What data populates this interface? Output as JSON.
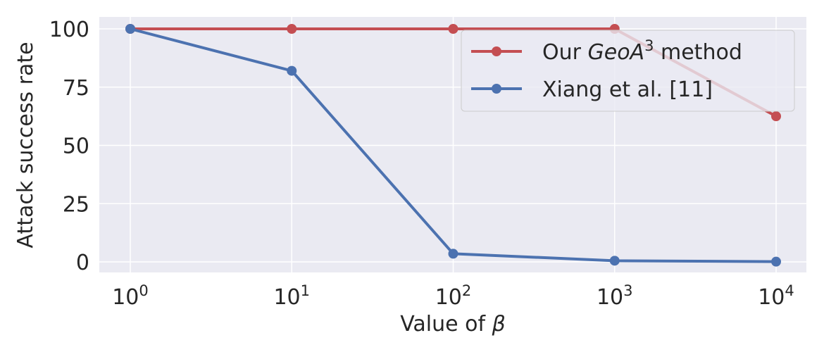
{
  "chart_data": {
    "type": "line",
    "x": [
      1,
      10,
      100,
      1000,
      10000
    ],
    "xscale": "log",
    "x_tick_labels": [
      {
        "base": "10",
        "exp": "0"
      },
      {
        "base": "10",
        "exp": "1"
      },
      {
        "base": "10",
        "exp": "2"
      },
      {
        "base": "10",
        "exp": "3"
      },
      {
        "base": "10",
        "exp": "4"
      }
    ],
    "xlabel": "Value of",
    "xlabel_symbol": "β",
    "ylabel": "Attack success rate",
    "ylim": [
      -4,
      105
    ],
    "yticks": [
      0,
      25,
      50,
      75,
      100
    ],
    "grid": true,
    "legend_position": "top-right",
    "series": [
      {
        "name_prefix": "Our ",
        "name_italic": "GeoA",
        "name_sup": "3",
        "name_suffix": " method",
        "color": "#c44e52",
        "values": [
          100,
          100,
          100,
          100,
          62.5
        ]
      },
      {
        "name": "Xiang et al. [11]",
        "color": "#4c72b0",
        "values": [
          100,
          82,
          3.5,
          0.5,
          0.1
        ]
      }
    ],
    "background": "#eaeaf2"
  }
}
